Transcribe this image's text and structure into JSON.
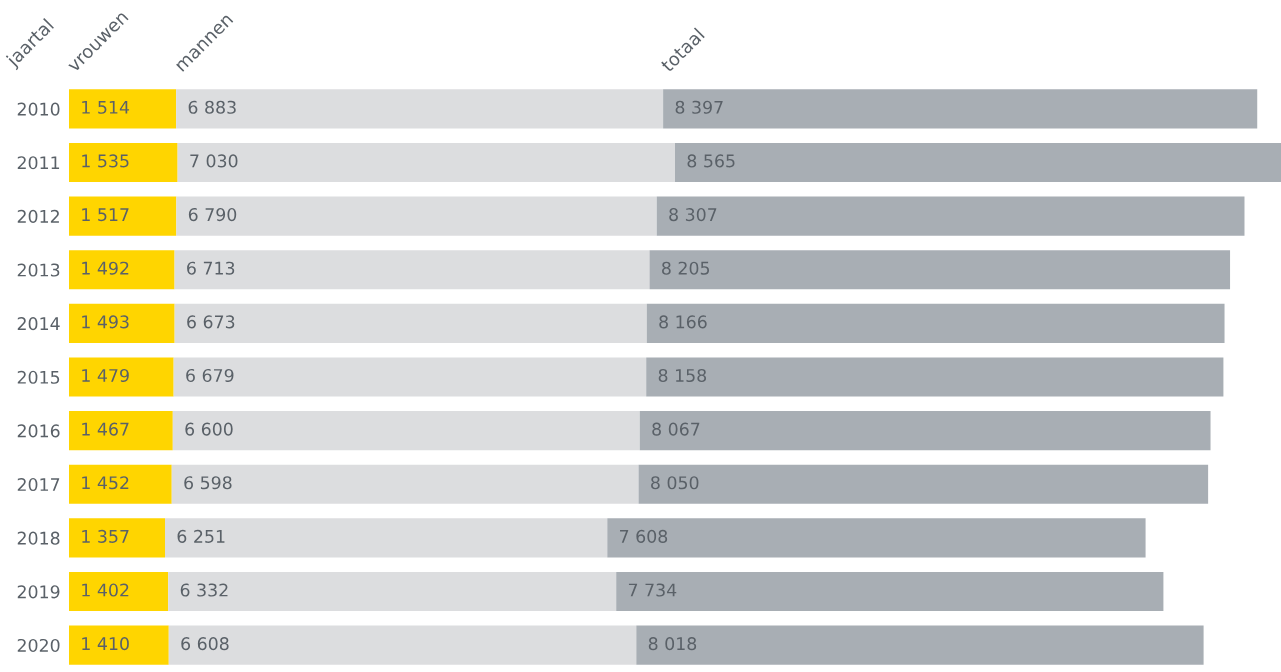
{
  "chart_data": {
    "type": "bar",
    "orientation": "horizontal",
    "stacked": true,
    "ylabel": "jaartal",
    "categories": [
      "2010",
      "2011",
      "2012",
      "2013",
      "2014",
      "2015",
      "2016",
      "2017",
      "2018",
      "2019",
      "2020"
    ],
    "series": [
      {
        "name": "vrouwen",
        "color": "#ffd500",
        "values": [
          1514,
          1535,
          1517,
          1492,
          1493,
          1479,
          1467,
          1452,
          1357,
          1402,
          1410
        ],
        "value_labels": [
          "1 514",
          "1 535",
          "1 517",
          "1 492",
          "1 493",
          "1 479",
          "1 467",
          "1 452",
          "1 357",
          "1 402",
          "1 410"
        ]
      },
      {
        "name": "mannen",
        "color": "#dcdddf",
        "values": [
          6883,
          7030,
          6790,
          6713,
          6673,
          6679,
          6600,
          6598,
          6251,
          6332,
          6608
        ],
        "value_labels": [
          "6 883",
          "7 030",
          "6 790",
          "6 713",
          "6 673",
          "6 679",
          "6 600",
          "6 598",
          "6 251",
          "6 332",
          "6 608"
        ]
      },
      {
        "name": "totaal",
        "color": "#a8aeb4",
        "values": [
          8397,
          8565,
          8307,
          8205,
          8166,
          8158,
          8067,
          8050,
          7608,
          7734,
          8018
        ],
        "value_labels": [
          "8 397",
          "8 565",
          "8 307",
          "8 205",
          "8 166",
          "8 158",
          "8 067",
          "8 050",
          "7 608",
          "7 734",
          "8 018"
        ]
      }
    ],
    "legend": false,
    "grid": false
  }
}
